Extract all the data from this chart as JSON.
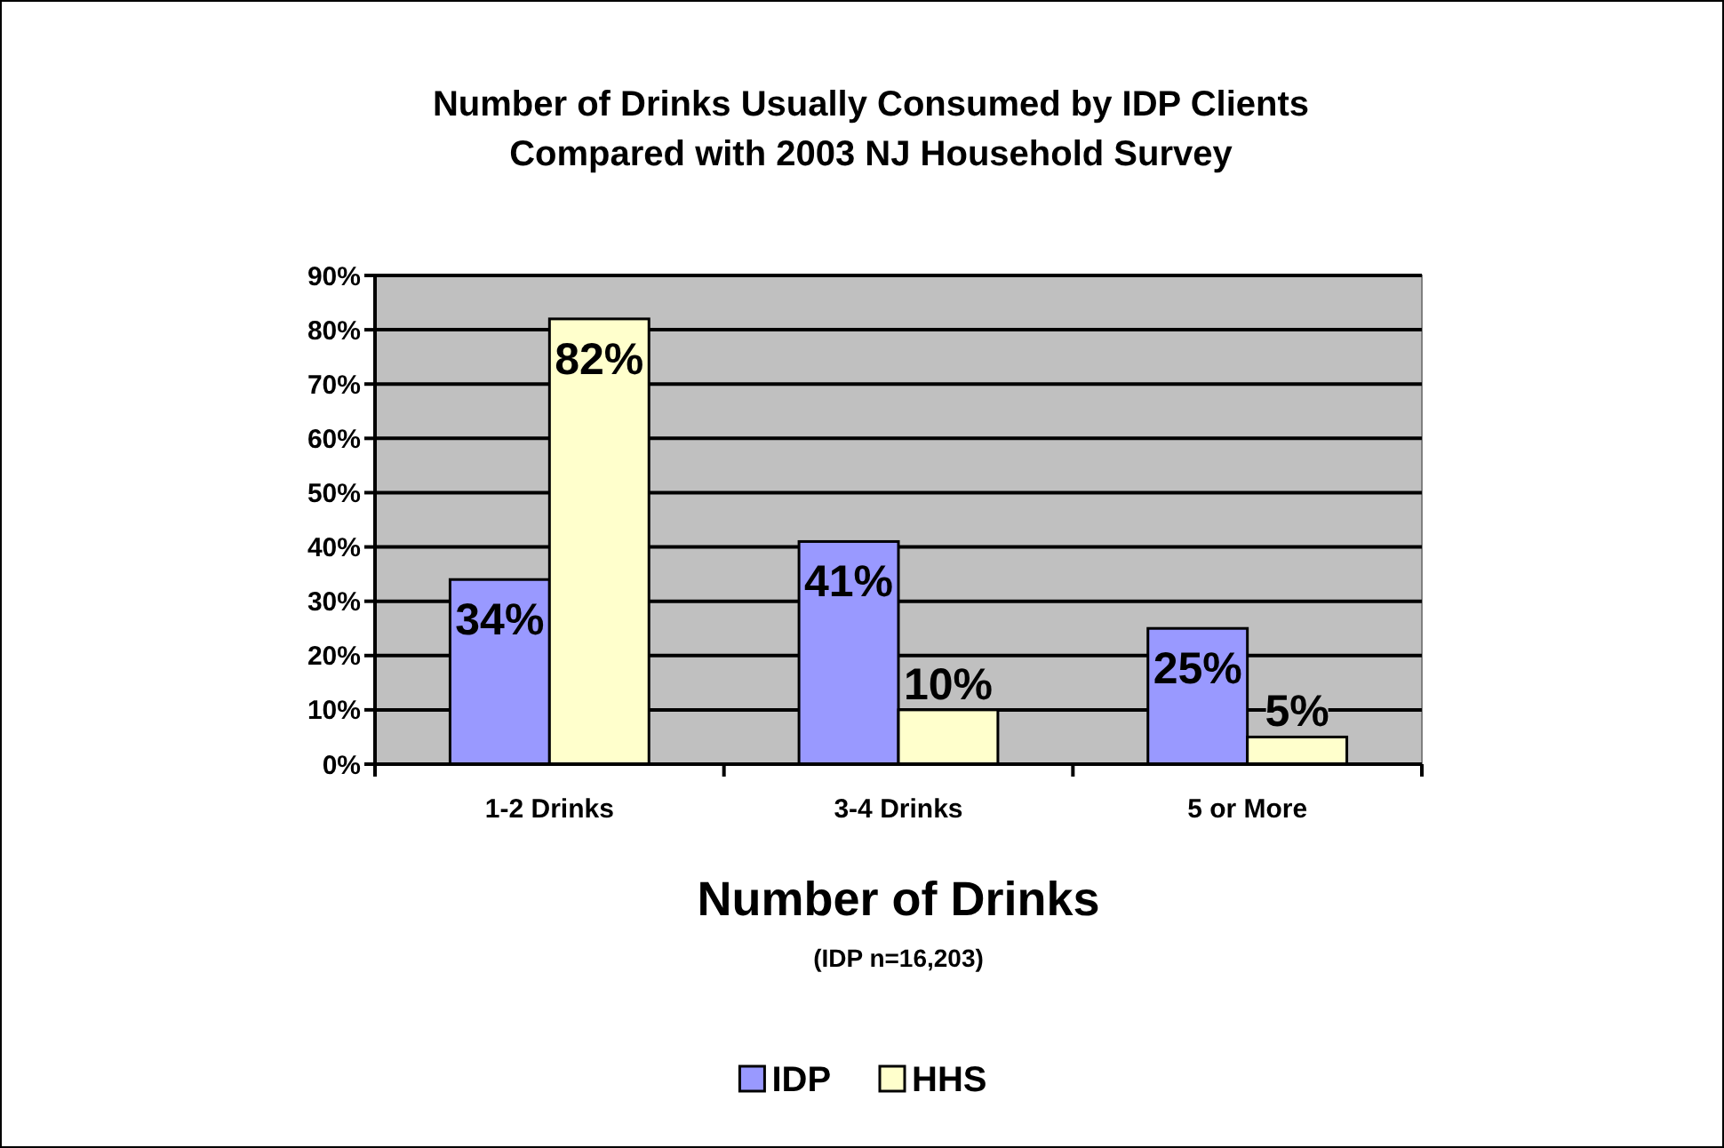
{
  "chart_data": {
    "type": "bar",
    "title": "Number of Drinks Usually Consumed by IDP Clients\nCompared with 2003 NJ Household Survey",
    "xlabel": "Number of Drinks",
    "annotations": [
      "(IDP n=16,203)"
    ],
    "categories": [
      "1-2 Drinks",
      "3-4 Drinks",
      "5 or More"
    ],
    "series": [
      {
        "name": "IDP",
        "color": "#9999ff",
        "values": [
          34,
          41,
          25
        ],
        "value_labels": [
          "34%",
          "41%",
          "25%"
        ]
      },
      {
        "name": "HHS",
        "color": "#ffffcc",
        "values": [
          82,
          10,
          5
        ],
        "value_labels": [
          "82%",
          "10%",
          "5%"
        ]
      }
    ],
    "ylim": [
      0,
      90
    ],
    "yticks": [
      {
        "value": 0,
        "label": "0%"
      },
      {
        "value": 10,
        "label": "10%"
      },
      {
        "value": 20,
        "label": "20%"
      },
      {
        "value": 30,
        "label": "30%"
      },
      {
        "value": 40,
        "label": "40%"
      },
      {
        "value": 50,
        "label": "50%"
      },
      {
        "value": 60,
        "label": "60%"
      },
      {
        "value": 70,
        "label": "70%"
      },
      {
        "value": 80,
        "label": "80%"
      },
      {
        "value": 90,
        "label": "90%"
      }
    ],
    "grid": "y",
    "legend": "bottom"
  }
}
